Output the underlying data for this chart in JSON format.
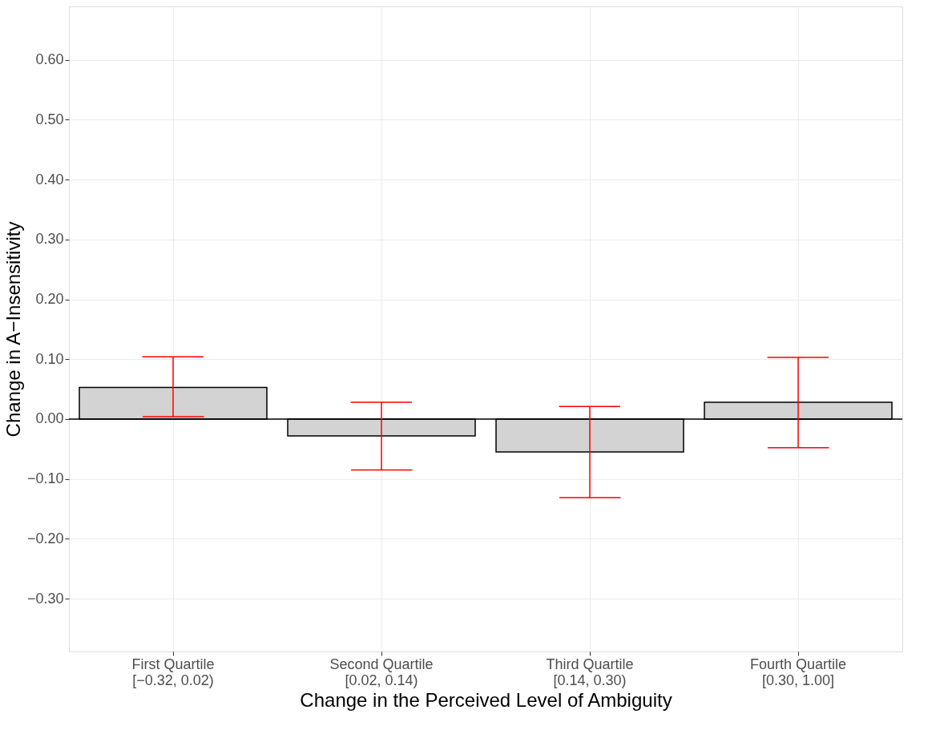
{
  "chart_data": {
    "type": "bar",
    "xlabel": "Change in the Perceived Level of Ambiguity",
    "ylabel": "Change in A−Insensitivity",
    "categories": [
      "First Quartile\n[−0.32, 0.02)",
      "Second Quartile\n[0.02, 0.14)",
      "Third Quartile\n[0.14, 0.30)",
      "Fourth Quartile\n[0.30, 1.00]"
    ],
    "values": [
      0.053,
      -0.028,
      -0.055,
      0.028
    ],
    "colors": [
      "#d3d3d3",
      "#d3d3d3",
      "#d3d3d3",
      "#d3d3d3"
    ],
    "errors": [
      [
        0.004,
        0.104
      ],
      [
        -0.085,
        0.028
      ],
      [
        -0.131,
        0.021
      ],
      [
        -0.048,
        0.103
      ]
    ],
    "ylim": [
      -0.388,
      0.689
    ],
    "yticks": [
      {
        "value": -0.3,
        "label": "−0.30"
      },
      {
        "value": -0.2,
        "label": "−0.20"
      },
      {
        "value": -0.1,
        "label": "−0.10"
      },
      {
        "value": 0,
        "label": "0.00"
      },
      {
        "value": 0.1,
        "label": "0.10"
      },
      {
        "value": 0.2,
        "label": "0.20"
      },
      {
        "value": 0.3,
        "label": "0.30"
      },
      {
        "value": 0.4,
        "label": "0.40"
      },
      {
        "value": 0.5,
        "label": "0.50"
      },
      {
        "value": 0.6,
        "label": "0.60"
      }
    ],
    "ref_lines": [
      {
        "axis": "y",
        "value": 0,
        "color": "#000000"
      }
    ],
    "grid": true
  }
}
